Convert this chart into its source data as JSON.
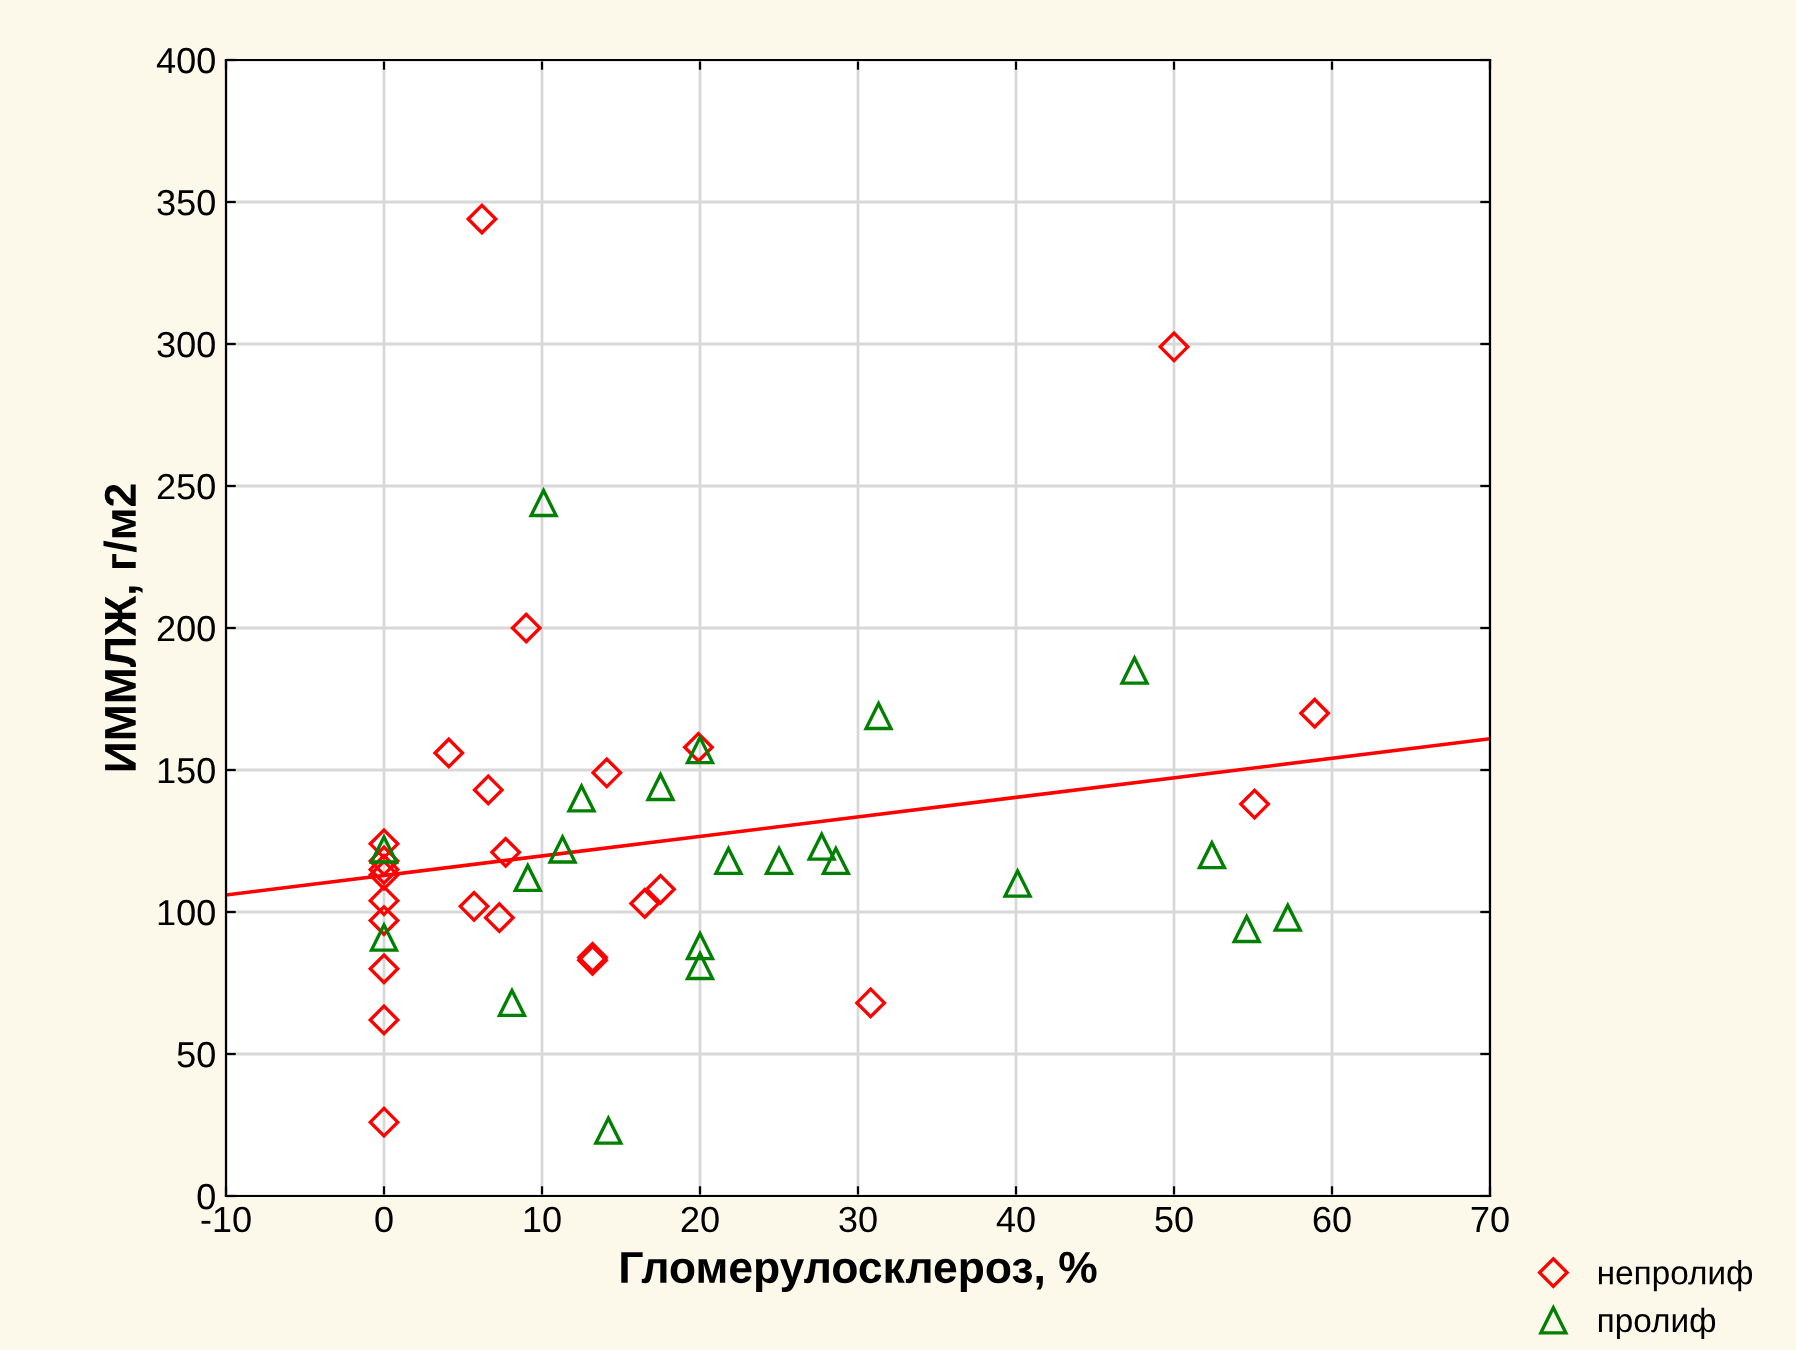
{
  "chart_data": {
    "type": "scatter",
    "xlabel": "Гломерулосклероз, %",
    "ylabel": "ИММЛЖ, г/м2",
    "xlim": [
      -10,
      70
    ],
    "ylim": [
      0,
      400
    ],
    "xticks": [
      -10,
      0,
      10,
      20,
      30,
      40,
      50,
      60,
      70
    ],
    "yticks": [
      0,
      50,
      100,
      150,
      200,
      250,
      300,
      350,
      400
    ],
    "grid": true,
    "legend": "bottom right",
    "series": [
      {
        "name": "непролиф",
        "color": "#ff0000",
        "marker": "diamond",
        "x": [
          6.2,
          9,
          50,
          4.1,
          19.9,
          6.6,
          14.1,
          58.9,
          7.7,
          55.1,
          5.7,
          7.3,
          16.5,
          17.5,
          13.2,
          13.2,
          30.8,
          0,
          0,
          0,
          0,
          0,
          0,
          0,
          0,
          0
        ],
        "values": [
          344,
          200,
          299,
          156,
          158,
          143,
          149,
          170,
          121,
          138,
          102,
          98,
          103,
          108,
          83,
          84,
          68,
          124,
          118,
          115,
          113,
          104,
          97,
          80,
          62,
          26
        ]
      },
      {
        "name": "пролиф",
        "color": "#008000",
        "marker": "triangle",
        "x": [
          10.1,
          31.3,
          47.5,
          20,
          17.5,
          12.5,
          11.3,
          9.1,
          8.1,
          14.2,
          20,
          20,
          21.8,
          25,
          27.7,
          28.6,
          40.1,
          52.4,
          54.6,
          57.2,
          0,
          0
        ],
        "values": [
          244,
          169,
          185,
          157,
          144,
          140,
          122,
          112,
          68,
          23,
          88,
          81,
          118,
          118,
          123,
          118,
          110,
          120,
          94,
          98,
          122,
          91
        ]
      },
      {
        "type": "line",
        "color": "#ff0000",
        "x": [
          -10,
          70
        ],
        "values": [
          106,
          161
        ]
      }
    ]
  }
}
